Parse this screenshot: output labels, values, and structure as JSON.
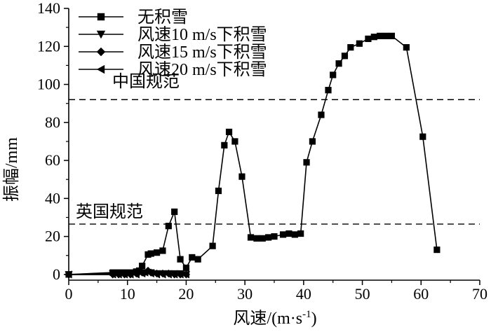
{
  "chart_data": {
    "type": "line",
    "title": "",
    "xlabel": "风速/(m·s",
    "xlabel_sup": "-1",
    "xlabel_close": ")",
    "ylabel": "振幅/mm",
    "xlim": [
      0,
      70
    ],
    "ylim": [
      -3,
      140
    ],
    "xticks": [
      0,
      10,
      20,
      30,
      40,
      50,
      60,
      70
    ],
    "yticks": [
      0,
      20,
      40,
      60,
      80,
      100,
      120,
      140
    ],
    "legend_position": "top-left",
    "reference_lines": [
      {
        "name": "中国规范",
        "y": 92
      },
      {
        "name": "英国规范",
        "y": 26.5
      }
    ],
    "series": [
      {
        "name": "无积雪",
        "marker": "square",
        "x": [
          0,
          7.5,
          8.5,
          9.5,
          10.5,
          11.5,
          12,
          12.5,
          13.5,
          14,
          15,
          16,
          17,
          18,
          19,
          20,
          21,
          22,
          24.5,
          25.5,
          26.5,
          27.3,
          28.3,
          29.5,
          31,
          32,
          33,
          34,
          35,
          36.5,
          37.5,
          38.5,
          39.5,
          40.5,
          41.5,
          43,
          44.2,
          45,
          46,
          47,
          48,
          49.5,
          51,
          52,
          53,
          54,
          55,
          57.5,
          60.3,
          62.7
        ],
        "y": [
          0,
          1,
          1,
          1,
          1,
          1.5,
          2,
          4.5,
          10.5,
          11,
          11.5,
          12.5,
          25.5,
          33,
          8,
          3.5,
          9,
          8,
          15,
          44,
          68,
          75,
          70,
          51.5,
          19.5,
          19,
          19,
          19.5,
          20,
          21,
          21.5,
          21,
          21.5,
          59,
          70,
          84,
          97,
          105,
          111,
          115,
          119.5,
          121.5,
          124,
          125,
          125.5,
          125.5,
          125.5,
          119.5,
          72.5,
          13
        ]
      },
      {
        "name": "风速10 m/s下积雪",
        "marker": "triangle-down",
        "x": [
          0,
          7.5,
          8.5,
          9.5,
          10.5,
          11.5,
          12,
          13,
          14,
          15,
          16,
          17,
          18,
          19,
          20
        ],
        "y": [
          0,
          0.5,
          0.5,
          0.5,
          0.5,
          0.5,
          1,
          1,
          1,
          0.5,
          0.5,
          0.5,
          0.5,
          0.5,
          0
        ]
      },
      {
        "name": "风速15 m/s下积雪",
        "marker": "diamond",
        "x": [
          0,
          7.5,
          8.5,
          9.5,
          10.5,
          11.5,
          12.5,
          13.5,
          14,
          15,
          16,
          17,
          18,
          19,
          20
        ],
        "y": [
          0,
          0,
          0,
          0,
          0,
          0.5,
          1,
          2,
          1,
          0.5,
          0.5,
          0.5,
          0,
          0,
          0
        ]
      },
      {
        "name": "风速20 m/s下积雪",
        "marker": "triangle-left",
        "x": [
          0,
          7.5,
          8.5,
          9.5,
          10.5,
          11.5,
          12.5,
          13,
          14,
          15,
          16,
          17,
          18,
          19,
          20
        ],
        "y": [
          0,
          0,
          0,
          0,
          0,
          0,
          0.5,
          1,
          0.5,
          0,
          0,
          0,
          0,
          0,
          0
        ]
      }
    ]
  }
}
